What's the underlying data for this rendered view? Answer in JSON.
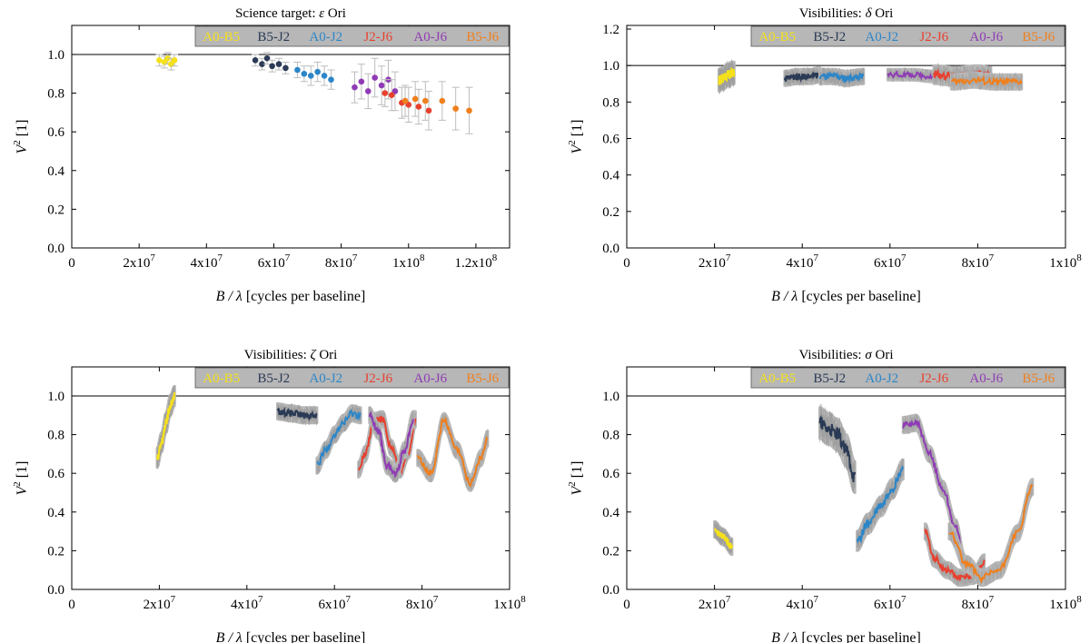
{
  "legend_labels": [
    "A0-B5",
    "B5-J2",
    "A0-J2",
    "J2-J6",
    "A0-J6",
    "B5-J6"
  ],
  "colors": {
    "A0-B5": "#f5e11b",
    "B5-J2": "#2b3b55",
    "A0-J2": "#2c86c8",
    "J2-J6": "#e8402e",
    "A0-J6": "#8f3bb5",
    "B5-J6": "#f07f1c",
    "errorbar": "#bdbdbd",
    "band": "#b9b9b9",
    "legend_bg": "#b7b7b7"
  },
  "chart_data": [
    {
      "id": "eps",
      "type": "scatter",
      "title_prefix": "Science target: ",
      "title_symbol": "ε",
      "title_suffix": " Ori",
      "xlabel_sym": "B / λ",
      "xlabel_rest": " [cycles per baseline]",
      "ylabel": "V2 [1]",
      "xlim": [
        0,
        130000000.0
      ],
      "ylim": [
        0,
        1.15
      ],
      "xticks": [
        0,
        20000000.0,
        40000000.0,
        60000000.0,
        80000000.0,
        100000000.0,
        120000000.0
      ],
      "xtick_labels": [
        "0",
        "2x107",
        "4x107",
        "6x107",
        "8x107",
        "1x108",
        "1.2x108"
      ],
      "yticks": [
        0,
        0.2,
        0.4,
        0.6,
        0.8,
        1.0
      ],
      "ytick_labels": [
        "0.0",
        "0.2",
        "0.4",
        "0.6",
        "0.8",
        "1.0"
      ],
      "reference_line": 1.0,
      "series": [
        {
          "name": "A0-B5",
          "x": [
            26000000.0,
            27500000.0,
            28500000.0,
            29500000.0,
            30500000.0
          ],
          "y": [
            0.97,
            0.96,
            0.98,
            0.95,
            0.97
          ],
          "err": [
            0.03,
            0.03,
            0.03,
            0.03,
            0.03
          ]
        },
        {
          "name": "B5-J2",
          "x": [
            54500000.0,
            56500000.0,
            58000000.0,
            59500000.0,
            61500000.0,
            63500000.0
          ],
          "y": [
            0.97,
            0.95,
            0.98,
            0.94,
            0.95,
            0.93
          ],
          "err": [
            0.03,
            0.03,
            0.03,
            0.03,
            0.03,
            0.03
          ]
        },
        {
          "name": "A0-J2",
          "x": [
            67000000.0,
            69000000.0,
            71000000.0,
            73000000.0,
            75000000.0,
            77000000.0
          ],
          "y": [
            0.92,
            0.9,
            0.89,
            0.91,
            0.89,
            0.87
          ],
          "err": [
            0.04,
            0.04,
            0.05,
            0.05,
            0.05,
            0.05
          ]
        },
        {
          "name": "A0-J6",
          "x": [
            84000000.0,
            86000000.0,
            88000000.0,
            90000000.0,
            92000000.0,
            94000000.0,
            96000000.0
          ],
          "y": [
            0.83,
            0.86,
            0.81,
            0.88,
            0.84,
            0.87,
            0.81
          ],
          "err": [
            0.08,
            0.09,
            0.09,
            0.1,
            0.1,
            0.1,
            0.1
          ]
        },
        {
          "name": "J2-J6",
          "x": [
            93000000.0,
            95000000.0,
            98000000.0,
            100000000.0,
            103000000.0,
            106000000.0
          ],
          "y": [
            0.8,
            0.79,
            0.75,
            0.74,
            0.73,
            0.71
          ],
          "err": [
            0.07,
            0.08,
            0.08,
            0.09,
            0.09,
            0.1
          ]
        },
        {
          "name": "B5-J6",
          "x": [
            99000000.0,
            102000000.0,
            105000000.0,
            110000000.0,
            114000000.0,
            118000000.0
          ],
          "y": [
            0.76,
            0.77,
            0.76,
            0.76,
            0.72,
            0.71
          ],
          "err": [
            0.08,
            0.09,
            0.1,
            0.1,
            0.11,
            0.12
          ]
        }
      ]
    },
    {
      "id": "delta",
      "type": "band",
      "title_prefix": "Visibilities: ",
      "title_symbol": "δ",
      "title_suffix": " Ori",
      "xlabel_sym": "B / λ",
      "xlabel_rest": " [cycles per baseline]",
      "ylabel": "V2 [1]",
      "xlim": [
        0,
        100000000.0
      ],
      "ylim": [
        0,
        1.22
      ],
      "xticks": [
        0,
        20000000.0,
        40000000.0,
        60000000.0,
        80000000.0,
        100000000.0
      ],
      "xtick_labels": [
        "0",
        "2x107",
        "4x107",
        "6x107",
        "8x107",
        "1x108"
      ],
      "yticks": [
        0,
        0.2,
        0.4,
        0.6,
        0.8,
        1.0,
        1.2
      ],
      "ytick_labels": [
        "0.0",
        "0.2",
        "0.4",
        "0.6",
        "0.8",
        "1.0",
        "1.2"
      ],
      "reference_line": 1.0,
      "series": [
        {
          "name": "A0-B5",
          "x": [
            21000000.0,
            22000000.0,
            23000000.0,
            24500000.0
          ],
          "y": [
            0.92,
            0.93,
            0.95,
            0.96
          ],
          "err": 0.06
        },
        {
          "name": "B5-J2",
          "x": [
            36000000.0,
            39000000.0,
            42000000.0,
            44000000.0
          ],
          "y": [
            0.93,
            0.94,
            0.94,
            0.95
          ],
          "err": 0.04
        },
        {
          "name": "A0-J2",
          "x": [
            44000000.0,
            47000000.0,
            50000000.0,
            54000000.0
          ],
          "y": [
            0.94,
            0.94,
            0.93,
            0.94
          ],
          "err": 0.04
        },
        {
          "name": "A0-J6",
          "x": [
            59500000.0,
            65000000.0,
            70000000.0,
            74000000.0
          ],
          "y": [
            0.95,
            0.95,
            0.94,
            0.95
          ],
          "err": 0.03
        },
        {
          "name": "J2-J6",
          "x": [
            70000000.0,
            75000000.0,
            80000000.0,
            83000000.0
          ],
          "y": [
            0.95,
            0.94,
            0.95,
            0.94
          ],
          "err": 0.05
        },
        {
          "name": "B5-J6",
          "x": [
            74000000.0,
            79000000.0,
            84000000.0,
            90000000.0
          ],
          "y": [
            0.91,
            0.92,
            0.91,
            0.91
          ],
          "err": 0.04
        }
      ]
    },
    {
      "id": "zeta",
      "type": "band",
      "title_prefix": "Visibilities: ",
      "title_symbol": "ζ",
      "title_suffix": " Ori",
      "xlabel_sym": "B / λ",
      "xlabel_rest": " [cycles per baseline]",
      "ylabel": "V2 [1]",
      "xlim": [
        0,
        100000000.0
      ],
      "ylim": [
        0,
        1.15
      ],
      "xticks": [
        0,
        20000000.0,
        40000000.0,
        60000000.0,
        80000000.0,
        100000000.0
      ],
      "xtick_labels": [
        "0",
        "2x107",
        "4x107",
        "6x107",
        "8x107",
        "1x108"
      ],
      "yticks": [
        0,
        0.2,
        0.4,
        0.6,
        0.8,
        1.0
      ],
      "ytick_labels": [
        "0.0",
        "0.2",
        "0.4",
        "0.6",
        "0.8",
        "1.0"
      ],
      "reference_line": 1.0,
      "series": [
        {
          "name": "A0-B5",
          "x": [
            19500000.0,
            20500000.0,
            21500000.0,
            22500000.0,
            23500000.0
          ],
          "y": [
            0.68,
            0.76,
            0.86,
            0.95,
            1.0
          ],
          "err": 0.05
        },
        {
          "name": "B5-J2",
          "x": [
            47000000.0,
            50000000.0,
            53000000.0,
            56000000.0
          ],
          "y": [
            0.92,
            0.91,
            0.9,
            0.9
          ],
          "err": 0.04
        },
        {
          "name": "A0-J2",
          "x": [
            56000000.0,
            58000000.0,
            60000000.0,
            62000000.0,
            64000000.0,
            66000000.0
          ],
          "y": [
            0.64,
            0.72,
            0.8,
            0.86,
            0.91,
            0.9
          ],
          "err": 0.04
        },
        {
          "name": "J2-J6",
          "x": [
            65500000.0,
            67000000.0,
            69000000.0,
            71000000.0,
            73000000.0,
            75000000.0,
            77000000.0,
            78500000.0
          ],
          "y": [
            0.62,
            0.7,
            0.87,
            0.88,
            0.73,
            0.62,
            0.72,
            0.88
          ],
          "err": 0.04
        },
        {
          "name": "A0-J6",
          "x": [
            68000000.0,
            70000000.0,
            72000000.0,
            74000000.0,
            76000000.0,
            78000000.0
          ],
          "y": [
            0.9,
            0.82,
            0.64,
            0.6,
            0.72,
            0.88
          ],
          "err": 0.04
        },
        {
          "name": "B5-J6",
          "x": [
            79000000.0,
            82000000.0,
            85000000.0,
            88000000.0,
            91000000.0,
            93500000.0,
            95000000.0
          ],
          "y": [
            0.68,
            0.6,
            0.87,
            0.72,
            0.55,
            0.68,
            0.78
          ],
          "err": 0.04
        }
      ]
    },
    {
      "id": "sigma",
      "type": "band",
      "title_prefix": "Visibilities: ",
      "title_symbol": "σ",
      "title_suffix": " Ori",
      "xlabel_sym": "B / λ",
      "xlabel_rest": " [cycles per baseline]",
      "ylabel": "V2 [1]",
      "xlim": [
        0,
        100000000.0
      ],
      "ylim": [
        0,
        1.15
      ],
      "xticks": [
        0,
        20000000.0,
        40000000.0,
        60000000.0,
        80000000.0,
        100000000.0
      ],
      "xtick_labels": [
        "0",
        "2x107",
        "4x107",
        "6x107",
        "8x107",
        "1x108"
      ],
      "yticks": [
        0,
        0.2,
        0.4,
        0.6,
        0.8,
        1.0
      ],
      "ytick_labels": [
        "0.0",
        "0.2",
        "0.4",
        "0.6",
        "0.8",
        "1.0"
      ],
      "reference_line": 1.0,
      "series": [
        {
          "name": "A0-B5",
          "x": [
            20000000.0,
            22000000.0,
            24000000.0
          ],
          "y": [
            0.31,
            0.27,
            0.22
          ],
          "err": 0.04
        },
        {
          "name": "B5-J2",
          "x": [
            44000000.0,
            46000000.0,
            48000000.0,
            50000000.0,
            52000000.0
          ],
          "y": [
            0.86,
            0.83,
            0.8,
            0.72,
            0.58
          ],
          "err": 0.08
        },
        {
          "name": "A0-J2",
          "x": [
            52500000.0,
            55000000.0,
            58000000.0,
            60500000.0,
            63000000.0
          ],
          "y": [
            0.25,
            0.34,
            0.43,
            0.52,
            0.62
          ],
          "err": 0.05
        },
        {
          "name": "A0-J6",
          "x": [
            63000000.0,
            66000000.0,
            69000000.0,
            72000000.0,
            75000000.0,
            77000000.0
          ],
          "y": [
            0.85,
            0.86,
            0.7,
            0.52,
            0.32,
            0.14
          ],
          "err": 0.04
        },
        {
          "name": "J2-J6",
          "x": [
            68000000.0,
            70000000.0,
            73000000.0,
            76000000.0,
            79000000.0,
            81500000.0
          ],
          "y": [
            0.3,
            0.16,
            0.1,
            0.06,
            0.07,
            0.14
          ],
          "err": 0.04
        },
        {
          "name": "B5-J6",
          "x": [
            73500000.0,
            77500000.0,
            81000000.0,
            85000000.0,
            89000000.0,
            92500000.0
          ],
          "y": [
            0.3,
            0.13,
            0.06,
            0.1,
            0.29,
            0.53
          ],
          "err": 0.04
        }
      ]
    }
  ]
}
